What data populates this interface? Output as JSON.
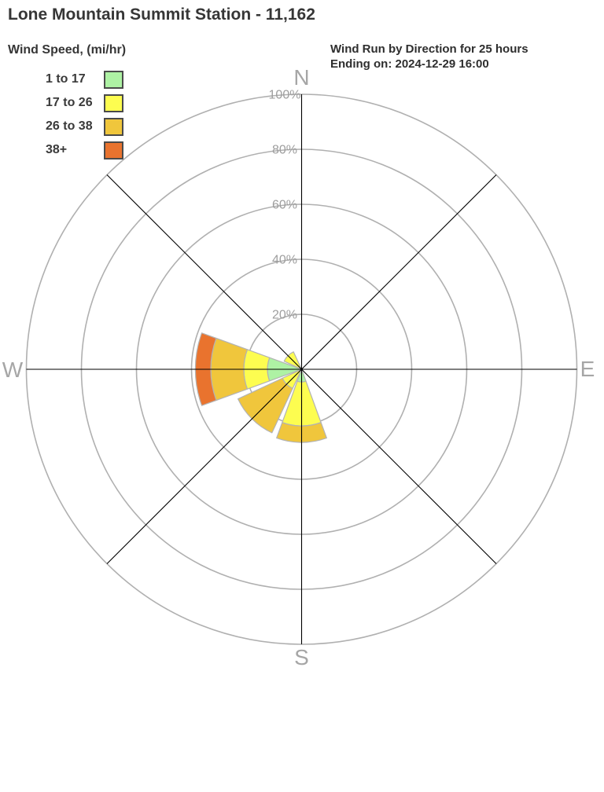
{
  "title": "Lone Mountain Summit Station - 11,162",
  "subtitle": {
    "line1": "Wind Run by Direction for 25 hours",
    "line2": "Ending on: 2024-12-29 16:00"
  },
  "legend": {
    "title": "Wind Speed, (mi/hr)",
    "items": [
      {
        "label": "1 to 17",
        "color": "#aef2a4"
      },
      {
        "label": "17 to 26",
        "color": "#fdfd50"
      },
      {
        "label": "26 to 38",
        "color": "#f0c63c"
      },
      {
        "label": "38+",
        "color": "#e9732e"
      }
    ]
  },
  "chart_data": {
    "type": "windrose",
    "title": "Wind Run by Direction for 25 hours",
    "ending_on": "2024-12-29 16:00",
    "units": "percent of wind run",
    "speed_bins_mi_hr": [
      "1 to 17",
      "17 to 26",
      "26 to 38",
      "38+"
    ],
    "direction_labels": [
      "N",
      "E",
      "S",
      "W"
    ],
    "ring_ticks": [
      "20%",
      "40%",
      "60%",
      "80%",
      "100%"
    ],
    "ring_values": [
      20,
      40,
      60,
      80,
      100
    ],
    "axis_max_percent": 100,
    "sector_width_deg": 40,
    "petals": [
      {
        "direction": "N",
        "angle_deg": 0,
        "cumulative_percent": [
          0,
          0,
          0,
          0
        ]
      },
      {
        "direction": "NE",
        "angle_deg": 45,
        "cumulative_percent": [
          0,
          0,
          0,
          0
        ]
      },
      {
        "direction": "E",
        "angle_deg": 90,
        "cumulative_percent": [
          0,
          0,
          0,
          0
        ]
      },
      {
        "direction": "SE",
        "angle_deg": 135,
        "cumulative_percent": [
          0,
          0,
          0,
          0
        ]
      },
      {
        "direction": "S",
        "angle_deg": 180,
        "cumulative_percent": [
          4.6,
          20.6,
          26.6,
          26.6
        ]
      },
      {
        "direction": "SW",
        "angle_deg": 225,
        "cumulative_percent": [
          0,
          7.7,
          25.5,
          25.5
        ]
      },
      {
        "direction": "W",
        "angle_deg": 270,
        "cumulative_percent": [
          12.4,
          21,
          33,
          38.6
        ]
      },
      {
        "direction": "NW",
        "angle_deg": 315,
        "cumulative_percent": [
          0,
          7,
          7,
          7
        ]
      }
    ]
  }
}
